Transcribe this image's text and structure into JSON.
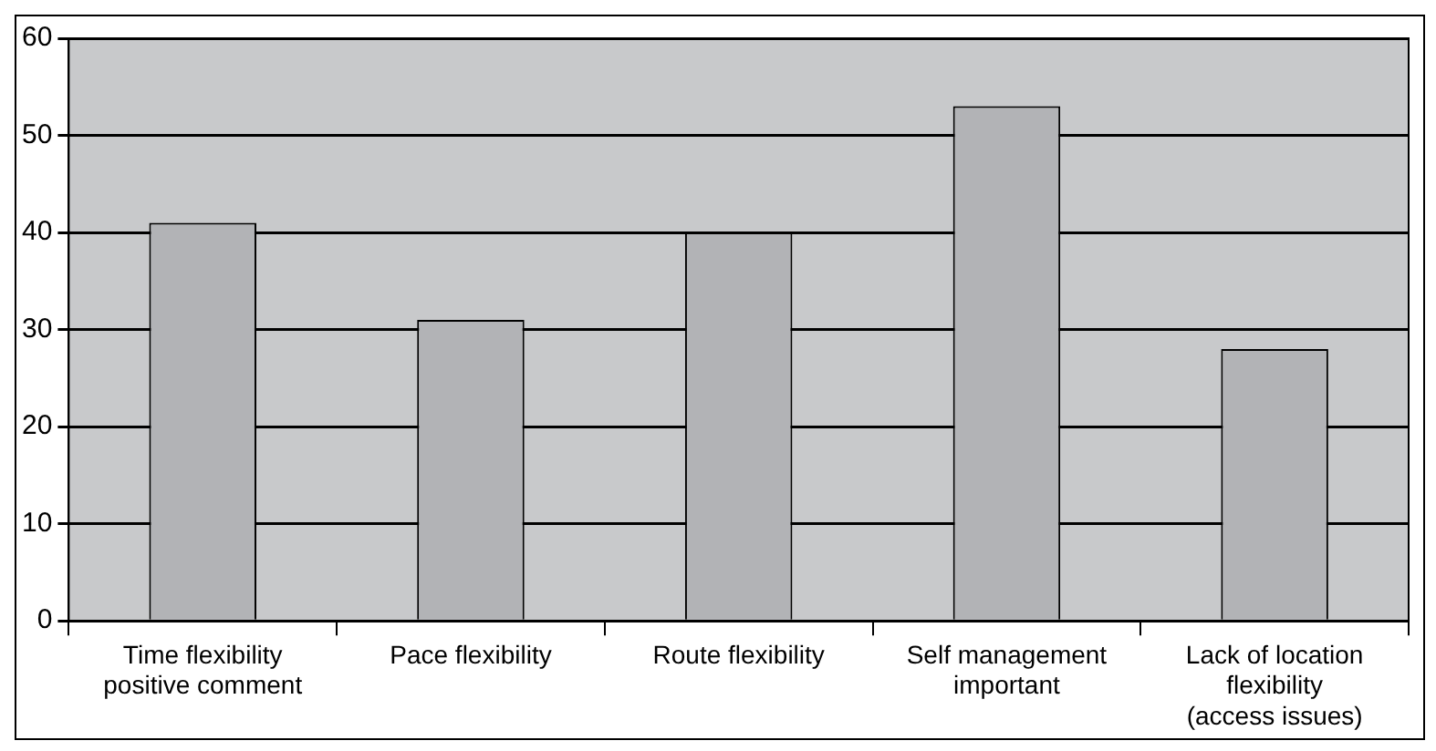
{
  "chart_data": {
    "type": "bar",
    "categories": [
      "Time flexibility positive comment",
      "Pace flexibility",
      "Route flexibility",
      "Self management important",
      "Lack of location flexibility (access issues)"
    ],
    "values": [
      41,
      31,
      40,
      53,
      28
    ],
    "color": "#b2b3b6",
    "ylim": [
      0,
      60
    ],
    "yticks": [
      0,
      10,
      20,
      30,
      40,
      50,
      60
    ],
    "grid": "y",
    "legend": false
  }
}
